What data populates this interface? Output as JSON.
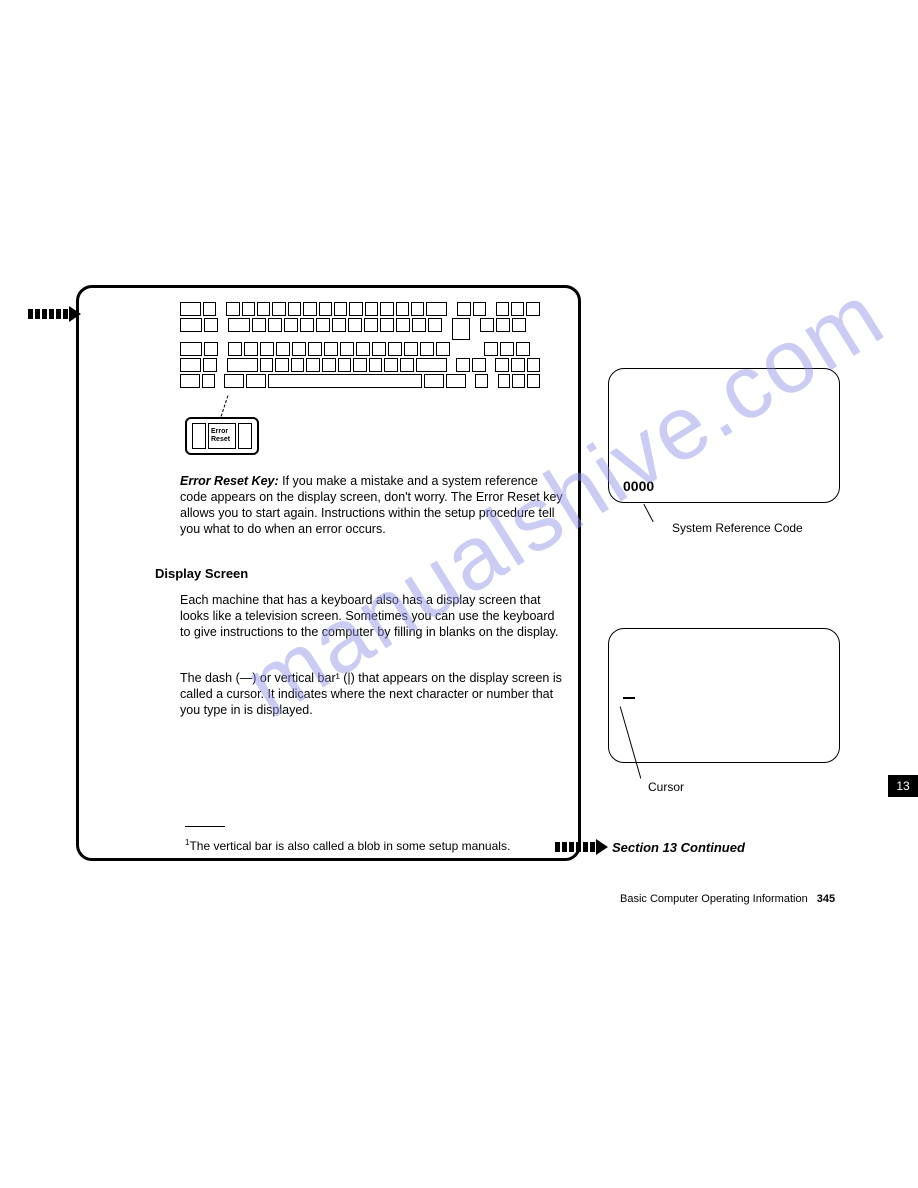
{
  "watermark": "manualshive.com",
  "callout": {
    "key_label": "Error\nReset"
  },
  "text": {
    "para1_lead": "Error Reset Key:",
    "para1": " If you make a mistake and a system reference code appears on the display screen, don't worry. The Error Reset key allows you to start again. Instructions within the setup procedure tell you what to do when an error occurs.",
    "heading2": "Display Screen",
    "para2": "Each machine that has a keyboard also has a display screen that looks like a television screen. Sometimes you can use the keyboard to give instructions to the computer by filling in blanks on the display.",
    "para3": "The dash (—) or vertical bar¹ (|) that appears on the display screen is called a cursor. It indicates where the next character or number that you type in is displayed.",
    "footnote": "The vertical bar is also called a blob in some setup manuals."
  },
  "right": {
    "code": "0000",
    "code_label": "System Reference Code",
    "cursor_label": "Cursor"
  },
  "continued": "Section 13 Continued",
  "tab": "13",
  "footer": {
    "title": "Basic Computer Operating Information",
    "page": "345"
  },
  "colors": {
    "text": "#000000",
    "background": "#ffffff",
    "watermark": "#8b90e8",
    "tab_bg": "#000000",
    "tab_fg": "#ffffff"
  }
}
